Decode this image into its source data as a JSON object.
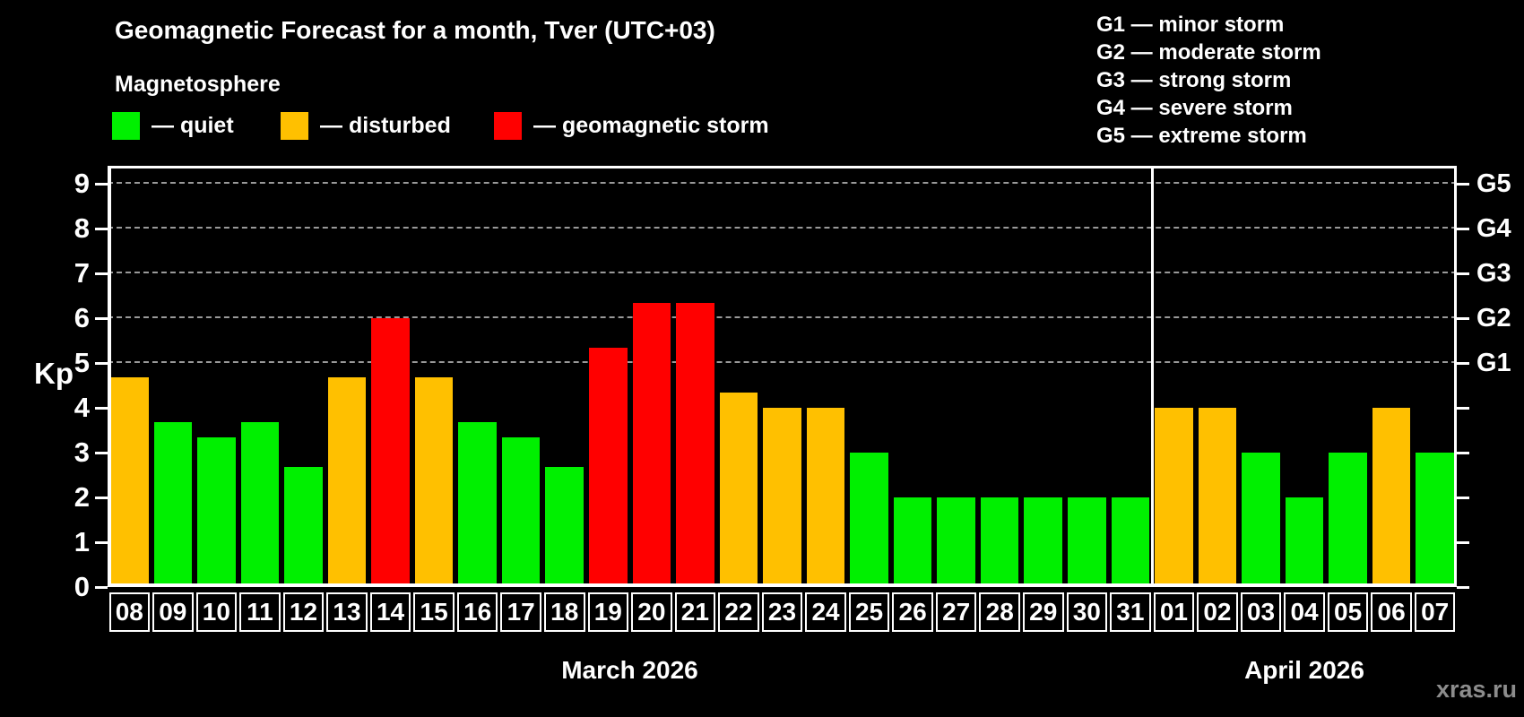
{
  "header": {
    "title": "Geomagnetic Forecast for a month, Tver (UTC+03)",
    "subtitle": "Magnetosphere",
    "legend": [
      {
        "status": "quiet",
        "label": "— quiet"
      },
      {
        "status": "disturbed",
        "label": "— disturbed"
      },
      {
        "status": "storm",
        "label": "— geomagnetic storm"
      }
    ],
    "storm_scale": [
      "G1 — minor storm",
      "G2 — moderate storm",
      "G3 — strong storm",
      "G4 — severe storm",
      "G5 — extreme storm"
    ]
  },
  "colors": {
    "quiet": "#00f000",
    "disturbed": "#ffc000",
    "storm": "#ff0000",
    "background": "#000000",
    "axis": "#ffffff",
    "gridline": "#999999",
    "watermark": "#8c8c8c"
  },
  "chart_data": {
    "type": "bar",
    "title": "Geomagnetic Forecast for a month, Tver (UTC+03)",
    "ylabel": "Kp",
    "ylim": [
      0,
      9.4
    ],
    "yticks": [
      0,
      1,
      2,
      3,
      4,
      5,
      6,
      7,
      8,
      9
    ],
    "gridlines_at": [
      5,
      6,
      7,
      8,
      9
    ],
    "grid": "dashed, only at G-storm levels 5-9",
    "right_axis_labels": [
      {
        "label": "G1",
        "kp": 5
      },
      {
        "label": "G2",
        "kp": 6
      },
      {
        "label": "G3",
        "kp": 7
      },
      {
        "label": "G4",
        "kp": 8
      },
      {
        "label": "G5",
        "kp": 9
      }
    ],
    "months": [
      {
        "label": "March 2026",
        "days": 24
      },
      {
        "label": "April 2026",
        "days": 7
      }
    ],
    "days": [
      {
        "day": "08",
        "value": 4.67,
        "status": "disturbed"
      },
      {
        "day": "09",
        "value": 3.67,
        "status": "quiet"
      },
      {
        "day": "10",
        "value": 3.33,
        "status": "quiet"
      },
      {
        "day": "11",
        "value": 3.67,
        "status": "quiet"
      },
      {
        "day": "12",
        "value": 2.67,
        "status": "quiet"
      },
      {
        "day": "13",
        "value": 4.67,
        "status": "disturbed"
      },
      {
        "day": "14",
        "value": 6.0,
        "status": "storm"
      },
      {
        "day": "15",
        "value": 4.67,
        "status": "disturbed"
      },
      {
        "day": "16",
        "value": 3.67,
        "status": "quiet"
      },
      {
        "day": "17",
        "value": 3.33,
        "status": "quiet"
      },
      {
        "day": "18",
        "value": 2.67,
        "status": "quiet"
      },
      {
        "day": "19",
        "value": 5.33,
        "status": "storm"
      },
      {
        "day": "20",
        "value": 6.33,
        "status": "storm"
      },
      {
        "day": "21",
        "value": 6.33,
        "status": "storm"
      },
      {
        "day": "22",
        "value": 4.33,
        "status": "disturbed"
      },
      {
        "day": "23",
        "value": 4.0,
        "status": "disturbed"
      },
      {
        "day": "24",
        "value": 4.0,
        "status": "disturbed"
      },
      {
        "day": "25",
        "value": 3.0,
        "status": "quiet"
      },
      {
        "day": "26",
        "value": 2.0,
        "status": "quiet"
      },
      {
        "day": "27",
        "value": 2.0,
        "status": "quiet"
      },
      {
        "day": "28",
        "value": 2.0,
        "status": "quiet"
      },
      {
        "day": "29",
        "value": 2.0,
        "status": "quiet"
      },
      {
        "day": "30",
        "value": 2.0,
        "status": "quiet"
      },
      {
        "day": "31",
        "value": 2.0,
        "status": "quiet"
      },
      {
        "day": "01",
        "value": 4.0,
        "status": "disturbed"
      },
      {
        "day": "02",
        "value": 4.0,
        "status": "disturbed"
      },
      {
        "day": "03",
        "value": 3.0,
        "status": "quiet"
      },
      {
        "day": "04",
        "value": 2.0,
        "status": "quiet"
      },
      {
        "day": "05",
        "value": 3.0,
        "status": "quiet"
      },
      {
        "day": "06",
        "value": 4.0,
        "status": "disturbed"
      },
      {
        "day": "07",
        "value": 3.0,
        "status": "quiet"
      }
    ]
  },
  "watermark": "xras.ru"
}
